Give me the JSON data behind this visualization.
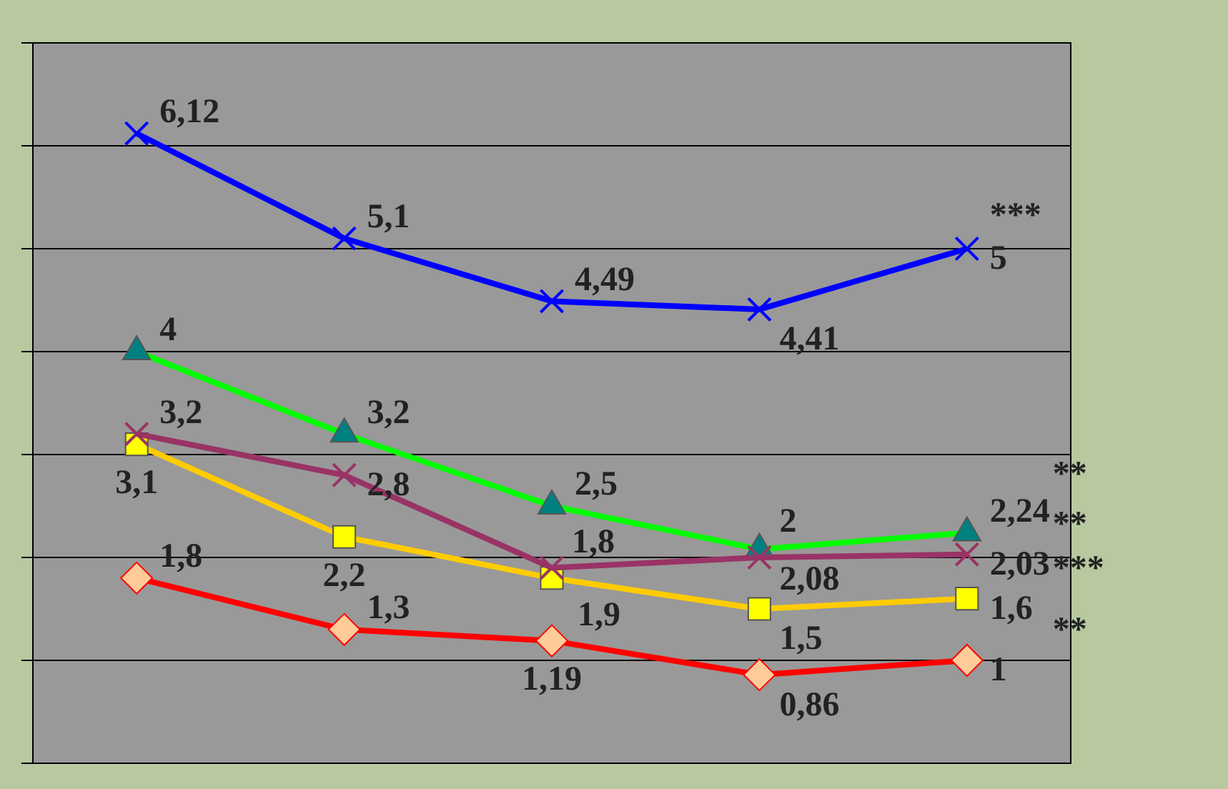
{
  "chart_data": {
    "type": "line",
    "categories": [
      null,
      null,
      null,
      null,
      null
    ],
    "grid": "y",
    "legend": false,
    "series": [
      {
        "color": "#0000ff",
        "marker": "cross",
        "values": [
          6.12,
          5.1,
          4.49,
          4.41,
          5
        ],
        "value_labels": [
          "6,12",
          "5,1",
          "4,49",
          "4,41",
          "5"
        ]
      },
      {
        "color": "#993366",
        "marker": "cross",
        "values": [
          3.2,
          2.8,
          1.9,
          2,
          2.03
        ],
        "value_labels": [
          "3,2",
          "2,8",
          "1,9",
          "2",
          "2,03"
        ]
      },
      {
        "color": "#00ff00",
        "marker": "triangle",
        "values": [
          4,
          3.2,
          2.5,
          2.08,
          2.24
        ],
        "value_labels": [
          "4",
          "3,2",
          "2,5",
          "2,08",
          "2,24"
        ]
      },
      {
        "color": "#ffcc00",
        "marker": "square",
        "values": [
          3.1,
          2.2,
          1.8,
          1.5,
          1.6
        ],
        "value_labels": [
          "3,1",
          "2,2",
          "1,8",
          "1,5",
          "1,6"
        ]
      },
      {
        "color": "#ff0000",
        "marker": "diamond",
        "values": [
          1.8,
          1.3,
          1.19,
          0.86,
          1
        ],
        "value_labels": [
          "1,8",
          "1,3",
          "1,19",
          "0,86",
          "1"
        ]
      }
    ],
    "annotations": [
      "***",
      "**",
      "**",
      "***",
      "**"
    ]
  }
}
